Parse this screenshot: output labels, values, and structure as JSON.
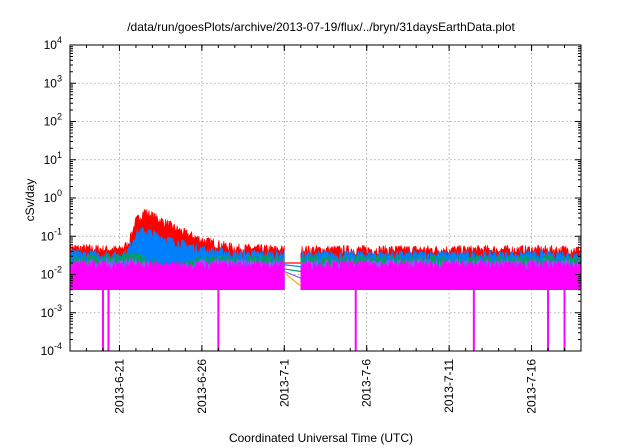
{
  "chart_data": {
    "type": "line",
    "title": "/data/run/goesPlots/archive/2013-07-19/flux/../bryn/31daysEarthData.plot",
    "xlabel": "Coordinated Universal Time (UTC)",
    "ylabel": "cSv/day",
    "yscale": "log",
    "ylim": [
      0.0001,
      10000
    ],
    "xlim": [
      "2013-06-18",
      "2013-07-19"
    ],
    "grid": true,
    "y_ticks": [
      {
        "value": 0.0001,
        "base": "10",
        "exp": "-4"
      },
      {
        "value": 0.001,
        "base": "10",
        "exp": "-3"
      },
      {
        "value": 0.01,
        "base": "10",
        "exp": "-2"
      },
      {
        "value": 0.1,
        "base": "10",
        "exp": "-1"
      },
      {
        "value": 1,
        "base": "10",
        "exp": "0"
      },
      {
        "value": 10,
        "base": "10",
        "exp": "1"
      },
      {
        "value": 100,
        "base": "10",
        "exp": "2"
      },
      {
        "value": 1000,
        "base": "10",
        "exp": "3"
      },
      {
        "value": 10000,
        "base": "10",
        "exp": "4"
      }
    ],
    "x_ticks": [
      {
        "date": "2013-06-21",
        "label": "2013-6-21"
      },
      {
        "date": "2013-06-26",
        "label": "2013-6-26"
      },
      {
        "date": "2013-07-01",
        "label": "2013-7-1"
      },
      {
        "date": "2013-07-06",
        "label": "2013-7-6"
      },
      {
        "date": "2013-07-11",
        "label": "2013-7-11"
      },
      {
        "date": "2013-07-16",
        "label": "2013-7-16"
      }
    ],
    "data_gap": [
      "2013-07-01",
      "2013-07-02"
    ],
    "series": [
      {
        "color": "#ff0000",
        "envelope": [
          [
            "2013-06-18",
            0.05
          ],
          [
            "2013-06-21",
            0.045
          ],
          [
            "2013-06-21 12:00",
            0.06
          ],
          [
            "2013-06-22",
            0.25
          ],
          [
            "2013-06-22 12:00",
            0.45
          ],
          [
            "2013-06-23",
            0.35
          ],
          [
            "2013-06-24",
            0.2
          ],
          [
            "2013-06-25",
            0.12
          ],
          [
            "2013-06-26",
            0.08
          ],
          [
            "2013-06-28",
            0.05
          ],
          [
            "2013-07-01",
            0.045
          ],
          [
            "2013-07-02",
            0.045
          ],
          [
            "2013-07-19",
            0.045
          ]
        ]
      },
      {
        "color": "#0080ff",
        "envelope": [
          [
            "2013-06-18",
            0.035
          ],
          [
            "2013-06-21",
            0.032
          ],
          [
            "2013-06-21 12:00",
            0.04
          ],
          [
            "2013-06-22",
            0.12
          ],
          [
            "2013-06-22 12:00",
            0.14
          ],
          [
            "2013-06-23",
            0.12
          ],
          [
            "2013-06-24",
            0.08
          ],
          [
            "2013-06-25",
            0.06
          ],
          [
            "2013-06-26",
            0.045
          ],
          [
            "2013-06-28",
            0.035
          ],
          [
            "2013-07-01",
            0.033
          ],
          [
            "2013-07-02",
            0.033
          ],
          [
            "2013-07-19",
            0.033
          ]
        ]
      },
      {
        "color": "#00a060",
        "envelope": [
          [
            "2013-06-18",
            0.025
          ],
          [
            "2013-06-22",
            0.03
          ],
          [
            "2013-06-24",
            0.015
          ],
          [
            "2013-06-26",
            0.025
          ],
          [
            "2013-07-01",
            0.025
          ],
          [
            "2013-07-02",
            0.025
          ],
          [
            "2013-07-19",
            0.025
          ]
        ]
      },
      {
        "color": "#8060ff",
        "envelope": [
          [
            "2013-06-18",
            0.02
          ],
          [
            "2013-06-22",
            0.022
          ],
          [
            "2013-06-24",
            0.012
          ],
          [
            "2013-06-26",
            0.02
          ],
          [
            "2013-07-01",
            0.02
          ],
          [
            "2013-07-02",
            0.02
          ],
          [
            "2013-07-19",
            0.02
          ]
        ]
      },
      {
        "color": "#ff00ff",
        "envelope": [
          [
            "2013-06-18",
            0.018
          ],
          [
            "2013-07-19",
            0.018
          ]
        ],
        "floor": 0.004,
        "dips_to_axis": [
          "2013-06-20",
          "2013-06-20 08:00",
          "2013-06-27",
          "2013-07-05 08:00",
          "2013-07-12 12:00",
          "2013-07-17",
          "2013-07-18"
        ]
      }
    ],
    "gap_connectors": [
      {
        "color": "#ff0000",
        "from": 0.02,
        "to": 0.02
      },
      {
        "color": "#0080ff",
        "from": 0.018,
        "to": 0.016
      },
      {
        "color": "#00a060",
        "from": 0.014,
        "to": 0.012
      },
      {
        "color": "#8060ff",
        "from": 0.012,
        "to": 0.008
      },
      {
        "color": "#ffaa00",
        "from": 0.011,
        "to": 0.005
      }
    ]
  }
}
